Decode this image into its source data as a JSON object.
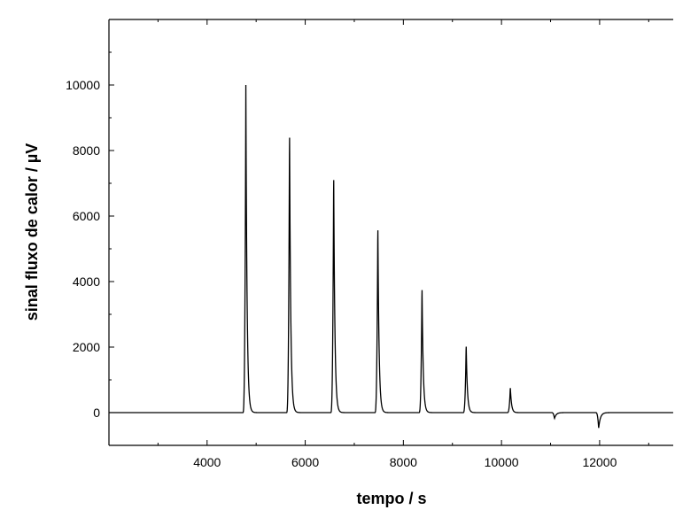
{
  "chart_data": {
    "type": "line",
    "title": "",
    "xlabel": "tempo / s",
    "ylabel": "sinal fluxo de calor / µV",
    "xlim": [
      2000,
      13500
    ],
    "ylim": [
      -1000,
      12000
    ],
    "x_ticks": [
      4000,
      6000,
      8000,
      10000,
      12000
    ],
    "y_ticks": [
      0,
      2000,
      4000,
      6000,
      8000,
      10000
    ],
    "grid": false,
    "line_color": "#000000",
    "series": [
      {
        "baseline": 0,
        "peaks": [
          {
            "x": 4790,
            "y": 10000
          },
          {
            "x": 5680,
            "y": 8750
          },
          {
            "x": 6580,
            "y": 7400
          },
          {
            "x": 7480,
            "y": 5800
          },
          {
            "x": 8380,
            "y": 3900
          },
          {
            "x": 9280,
            "y": 2100
          },
          {
            "x": 10180,
            "y": 780
          },
          {
            "x": 11080,
            "y": -180
          },
          {
            "x": 11980,
            "y": -480
          }
        ]
      }
    ]
  }
}
